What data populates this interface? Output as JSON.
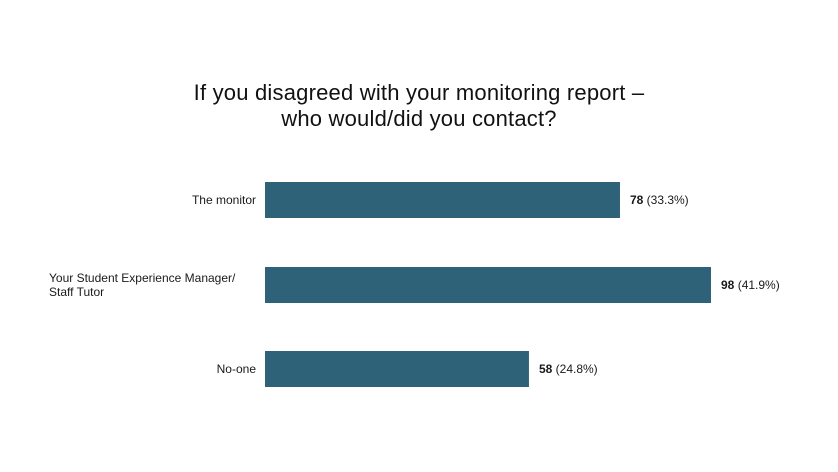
{
  "chart_data": {
    "type": "bar",
    "orientation": "horizontal",
    "title_lines": [
      "If you disagreed with your monitoring report –",
      "who would/did you contact?"
    ],
    "categories": [
      [
        "The monitor"
      ],
      [
        "Your Student Experience Manager/",
        "Staff Tutor"
      ],
      [
        "No-one"
      ]
    ],
    "values": [
      78,
      98,
      58
    ],
    "percent_labels": [
      "(33.3%)",
      "(41.9%)",
      "(24.8%)"
    ],
    "xlim": [
      0,
      98
    ],
    "bar_color": "#2e6279",
    "grid": false,
    "legend": "none"
  }
}
